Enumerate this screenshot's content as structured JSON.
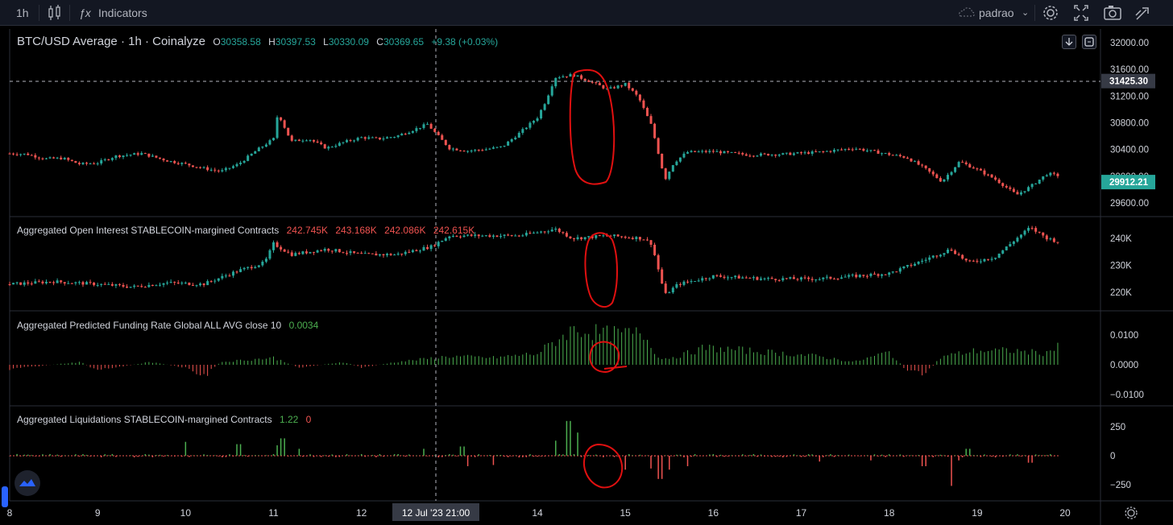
{
  "toolbar": {
    "interval": "1h",
    "indicators_label": "Indicators",
    "layout_name": "padrao"
  },
  "main_legend": {
    "symbol": "BTC/USD Average · 1h · Coinalyze",
    "open": "30358.58",
    "high": "30397.53",
    "low": "30330.09",
    "close": "30369.65",
    "change": "+9.38 (+0.03%)"
  },
  "panes": {
    "oi": {
      "title": "Aggregated Open Interest STABLECOIN-margined Contracts",
      "values": [
        "242.745K",
        "243.168K",
        "242.086K",
        "242.615K"
      ]
    },
    "funding": {
      "title": "Aggregated Predicted Funding Rate Global ALL AVG close 10",
      "value": "0.0034"
    },
    "liq": {
      "title": "Aggregated Liquidations STABLECOIN-margined Contracts",
      "value_long": "1.22",
      "value_short": "0"
    }
  },
  "price_axis": {
    "main": [
      "32000.00",
      "31600.00",
      "31200.00",
      "30800.00",
      "30400.00",
      "30000.00",
      "29600.00"
    ],
    "crosshair_label": "31425.30",
    "last_price_label": "29912.21",
    "oi": [
      "240K",
      "230K",
      "220K"
    ],
    "funding": [
      "0.0100",
      "0.0000",
      "−0.0100"
    ],
    "liq": [
      "250",
      "0",
      "−250"
    ]
  },
  "time_axis": {
    "ticks": [
      "8",
      "9",
      "10",
      "11",
      "12",
      "13",
      "14",
      "15",
      "16",
      "17",
      "18",
      "19",
      "20"
    ],
    "crosshair_label": "12 Jul '23   21:00"
  },
  "chart_data": {
    "type": "candlestick",
    "x_range": [
      "8",
      "20"
    ],
    "y_range": [
      29600,
      32000
    ],
    "crosshair_price": 31425.3,
    "last_price": 29912.21,
    "last_ohlc": {
      "open": 30358.58,
      "high": 30397.53,
      "low": 30330.09,
      "close": 30369.65
    },
    "price_path": [
      [
        0,
        30340
      ],
      [
        0.2,
        30330
      ],
      [
        0.4,
        30260
      ],
      [
        0.6,
        30270
      ],
      [
        0.8,
        30180
      ],
      [
        1.0,
        30200
      ],
      [
        1.2,
        30300
      ],
      [
        1.5,
        30340
      ],
      [
        1.8,
        30230
      ],
      [
        2.0,
        30180
      ],
      [
        2.2,
        30120
      ],
      [
        2.4,
        30070
      ],
      [
        2.6,
        30180
      ],
      [
        2.8,
        30380
      ],
      [
        3.0,
        30560
      ],
      [
        3.05,
        30950
      ],
      [
        3.2,
        30520
      ],
      [
        3.4,
        30560
      ],
      [
        3.6,
        30420
      ],
      [
        3.8,
        30510
      ],
      [
        4.0,
        30580
      ],
      [
        4.2,
        30560
      ],
      [
        4.4,
        30600
      ],
      [
        4.6,
        30700
      ],
      [
        4.75,
        30780
      ],
      [
        4.9,
        30560
      ],
      [
        5.0,
        30420
      ],
      [
        5.2,
        30380
      ],
      [
        5.4,
        30400
      ],
      [
        5.6,
        30440
      ],
      [
        5.8,
        30650
      ],
      [
        6.0,
        30880
      ],
      [
        6.1,
        31140
      ],
      [
        6.2,
        31480
      ],
      [
        6.4,
        31520
      ],
      [
        6.6,
        31420
      ],
      [
        6.8,
        31300
      ],
      [
        7.0,
        31380
      ],
      [
        7.15,
        31180
      ],
      [
        7.3,
        30750
      ],
      [
        7.45,
        29950
      ],
      [
        7.55,
        30200
      ],
      [
        7.7,
        30360
      ],
      [
        8.0,
        30370
      ],
      [
        8.4,
        30320
      ],
      [
        8.8,
        30330
      ],
      [
        9.2,
        30360
      ],
      [
        9.6,
        30420
      ],
      [
        9.9,
        30350
      ],
      [
        10.2,
        30280
      ],
      [
        10.4,
        30120
      ],
      [
        10.6,
        29920
      ],
      [
        10.8,
        30220
      ],
      [
        11.0,
        30100
      ],
      [
        11.2,
        29960
      ],
      [
        11.45,
        29720
      ],
      [
        11.6,
        29840
      ],
      [
        11.8,
        30040
      ],
      [
        12.0,
        29990
      ],
      [
        12.2,
        29960
      ],
      [
        12.4,
        29920
      ],
      [
        12.5,
        29912
      ]
    ],
    "oi_path": [
      [
        0,
        223
      ],
      [
        0.5,
        224
      ],
      [
        1.0,
        223
      ],
      [
        1.4,
        222
      ],
      [
        1.8,
        223.5
      ],
      [
        2.2,
        223
      ],
      [
        2.6,
        228
      ],
      [
        2.9,
        231
      ],
      [
        3.0,
        238
      ],
      [
        3.2,
        234
      ],
      [
        3.6,
        236
      ],
      [
        4.0,
        234
      ],
      [
        4.4,
        234
      ],
      [
        4.8,
        237
      ],
      [
        5.0,
        241
      ],
      [
        5.4,
        241
      ],
      [
        5.8,
        241
      ],
      [
        6.2,
        243.5
      ],
      [
        6.4,
        240
      ],
      [
        6.8,
        241
      ],
      [
        7.2,
        240
      ],
      [
        7.3,
        238
      ],
      [
        7.45,
        219
      ],
      [
        7.6,
        223
      ],
      [
        8.0,
        226
      ],
      [
        8.6,
        225
      ],
      [
        9.2,
        225
      ],
      [
        9.6,
        226
      ],
      [
        10.0,
        227
      ],
      [
        10.4,
        232
      ],
      [
        10.7,
        236
      ],
      [
        10.9,
        231
      ],
      [
        11.2,
        233
      ],
      [
        11.45,
        240
      ],
      [
        11.6,
        244
      ],
      [
        11.8,
        240
      ],
      [
        12.0,
        238
      ],
      [
        12.3,
        238
      ],
      [
        12.5,
        237
      ]
    ],
    "ylabel": ""
  }
}
